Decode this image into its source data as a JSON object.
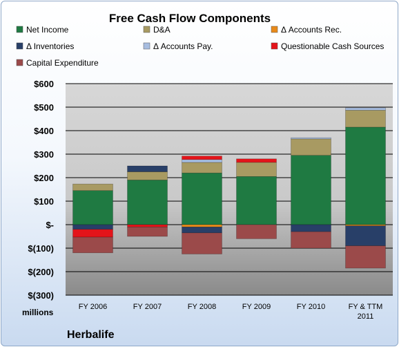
{
  "chart_data": {
    "type": "bar",
    "stacked": true,
    "title": "Free Cash Flow Components",
    "units_label": "millions",
    "company_label": "Herbalife",
    "categories": [
      [
        "FY 2006"
      ],
      [
        "FY 2007"
      ],
      [
        "FY 2008"
      ],
      [
        "FY 2009"
      ],
      [
        "FY 2010"
      ],
      [
        "FY & TTM",
        "2011"
      ]
    ],
    "ylim": [
      -300,
      600
    ],
    "yticks": [
      600,
      500,
      400,
      300,
      200,
      100,
      0,
      -100,
      -200,
      -300
    ],
    "ytick_labels": [
      "$600",
      "$500",
      "$400",
      "$300",
      "$200",
      "$100",
      "$-",
      "$(100)",
      "$(200)",
      "$(300)"
    ],
    "legend_position": "top",
    "grid": true,
    "series": [
      {
        "name": "Net Income",
        "color": "#1f7a42",
        "values": [
          145,
          190,
          220,
          205,
          295,
          415
        ]
      },
      {
        "name": "D&A",
        "color": "#a89a62",
        "values": [
          28,
          35,
          45,
          60,
          70,
          72
        ]
      },
      {
        "name": "Δ Accounts Rec.",
        "color": "#e88a1a",
        "values": [
          0,
          0,
          -10,
          0,
          0,
          -5
        ]
      },
      {
        "name": "Δ Inventories",
        "color": "#283f68",
        "values": [
          -20,
          25,
          -25,
          0,
          -30,
          -85
        ]
      },
      {
        "name": "Δ Accounts Pay.",
        "color": "#a7bde0",
        "values": [
          0,
          0,
          12,
          0,
          5,
          10
        ]
      },
      {
        "name": "Questionable Cash Sources",
        "color": "#e4141a",
        "values": [
          -33,
          -10,
          15,
          15,
          0,
          0
        ]
      },
      {
        "name": "Capital Expenditure",
        "color": "#9b4a4a",
        "values": [
          -67,
          -40,
          -90,
          -60,
          -70,
          -95
        ]
      }
    ]
  }
}
